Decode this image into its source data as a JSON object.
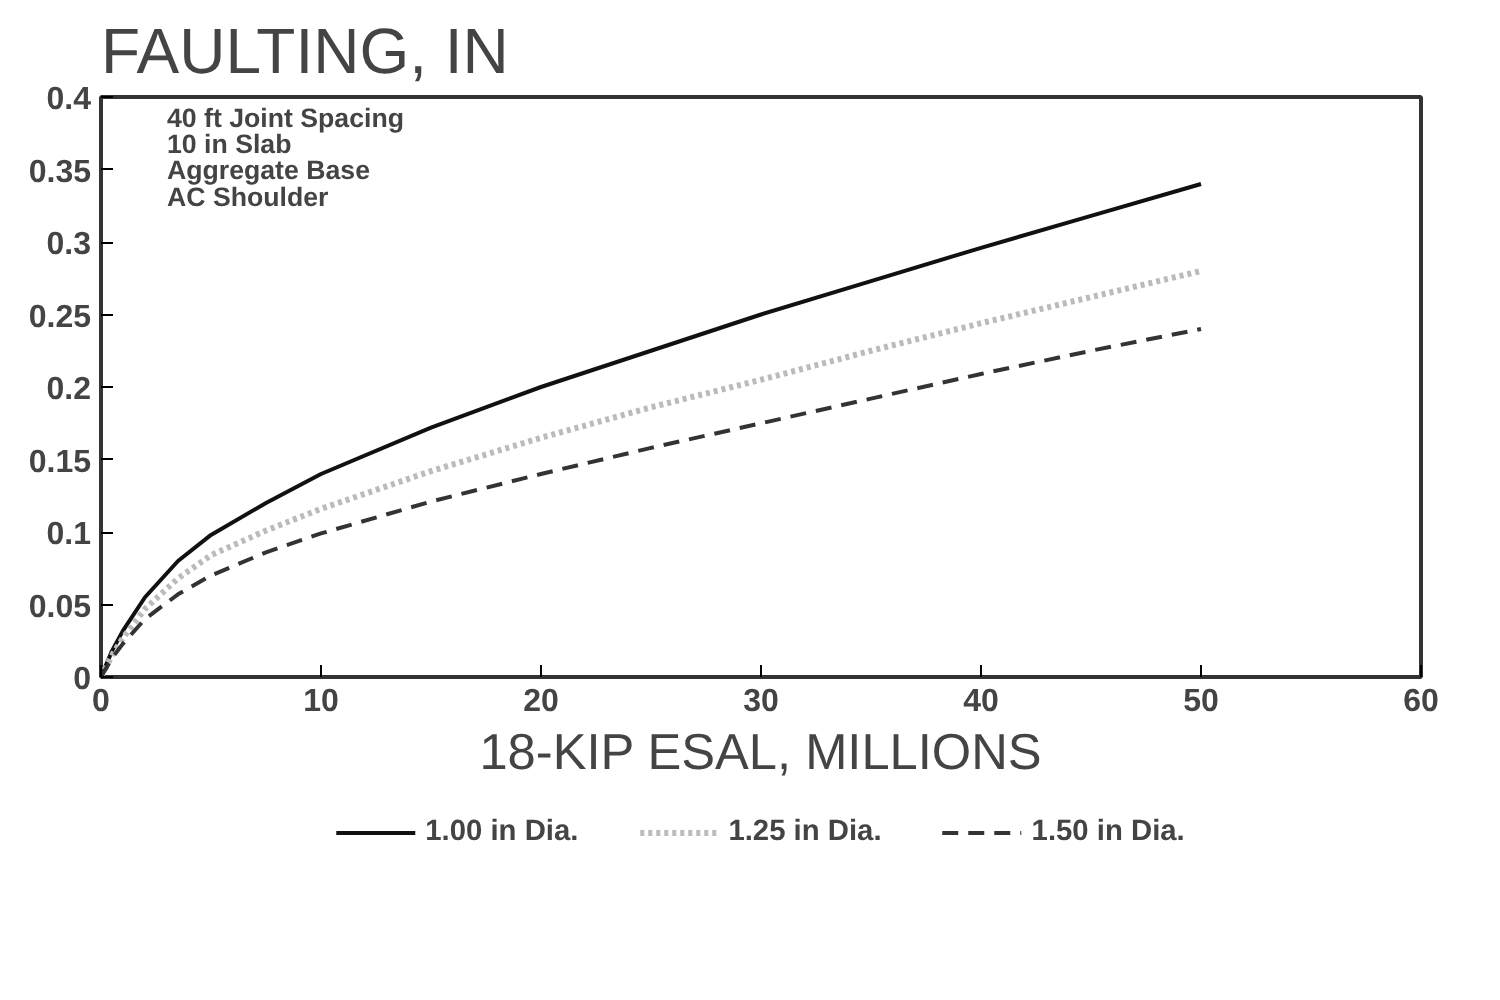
{
  "chart_data": {
    "type": "line",
    "title": "FAULTING, IN",
    "xlabel": "18-KIP ESAL, MILLIONS",
    "annotations": [
      "40 ft Joint Spacing",
      "10 in Slab",
      "Aggregate Base",
      "AC Shoulder"
    ],
    "x": [
      0,
      0.5,
      1,
      2,
      3.5,
      5,
      7.5,
      10,
      15,
      20,
      25,
      30,
      35,
      40,
      45,
      50
    ],
    "series": [
      {
        "name": "1.00 in Dia.",
        "color": "#111111",
        "line_style": "solid",
        "values": [
          0,
          0.018,
          0.032,
          0.055,
          0.08,
          0.098,
          0.12,
          0.14,
          0.172,
          0.2,
          0.225,
          0.25,
          0.273,
          0.296,
          0.318,
          0.34
        ]
      },
      {
        "name": "1.25 in Dia.",
        "color": "#bbbbbb",
        "line_style": "dotted",
        "values": [
          0,
          0.015,
          0.027,
          0.047,
          0.068,
          0.084,
          0.101,
          0.116,
          0.142,
          0.165,
          0.186,
          0.205,
          0.225,
          0.244,
          0.262,
          0.28
        ]
      },
      {
        "name": "1.50 in Dia.",
        "color": "#333333",
        "line_style": "dashed",
        "values": [
          0,
          0.013,
          0.023,
          0.04,
          0.057,
          0.07,
          0.086,
          0.099,
          0.121,
          0.14,
          0.158,
          0.175,
          0.192,
          0.209,
          0.225,
          0.24
        ]
      }
    ],
    "xlim": [
      0,
      60
    ],
    "xticks": [
      0,
      10,
      20,
      30,
      40,
      50,
      60
    ],
    "ylim": [
      0,
      0.4
    ],
    "yticks": [
      0,
      0.05,
      0.1,
      0.15,
      0.2,
      0.25,
      0.3,
      0.35,
      0.4
    ],
    "grid": false,
    "legend": "bottom"
  }
}
